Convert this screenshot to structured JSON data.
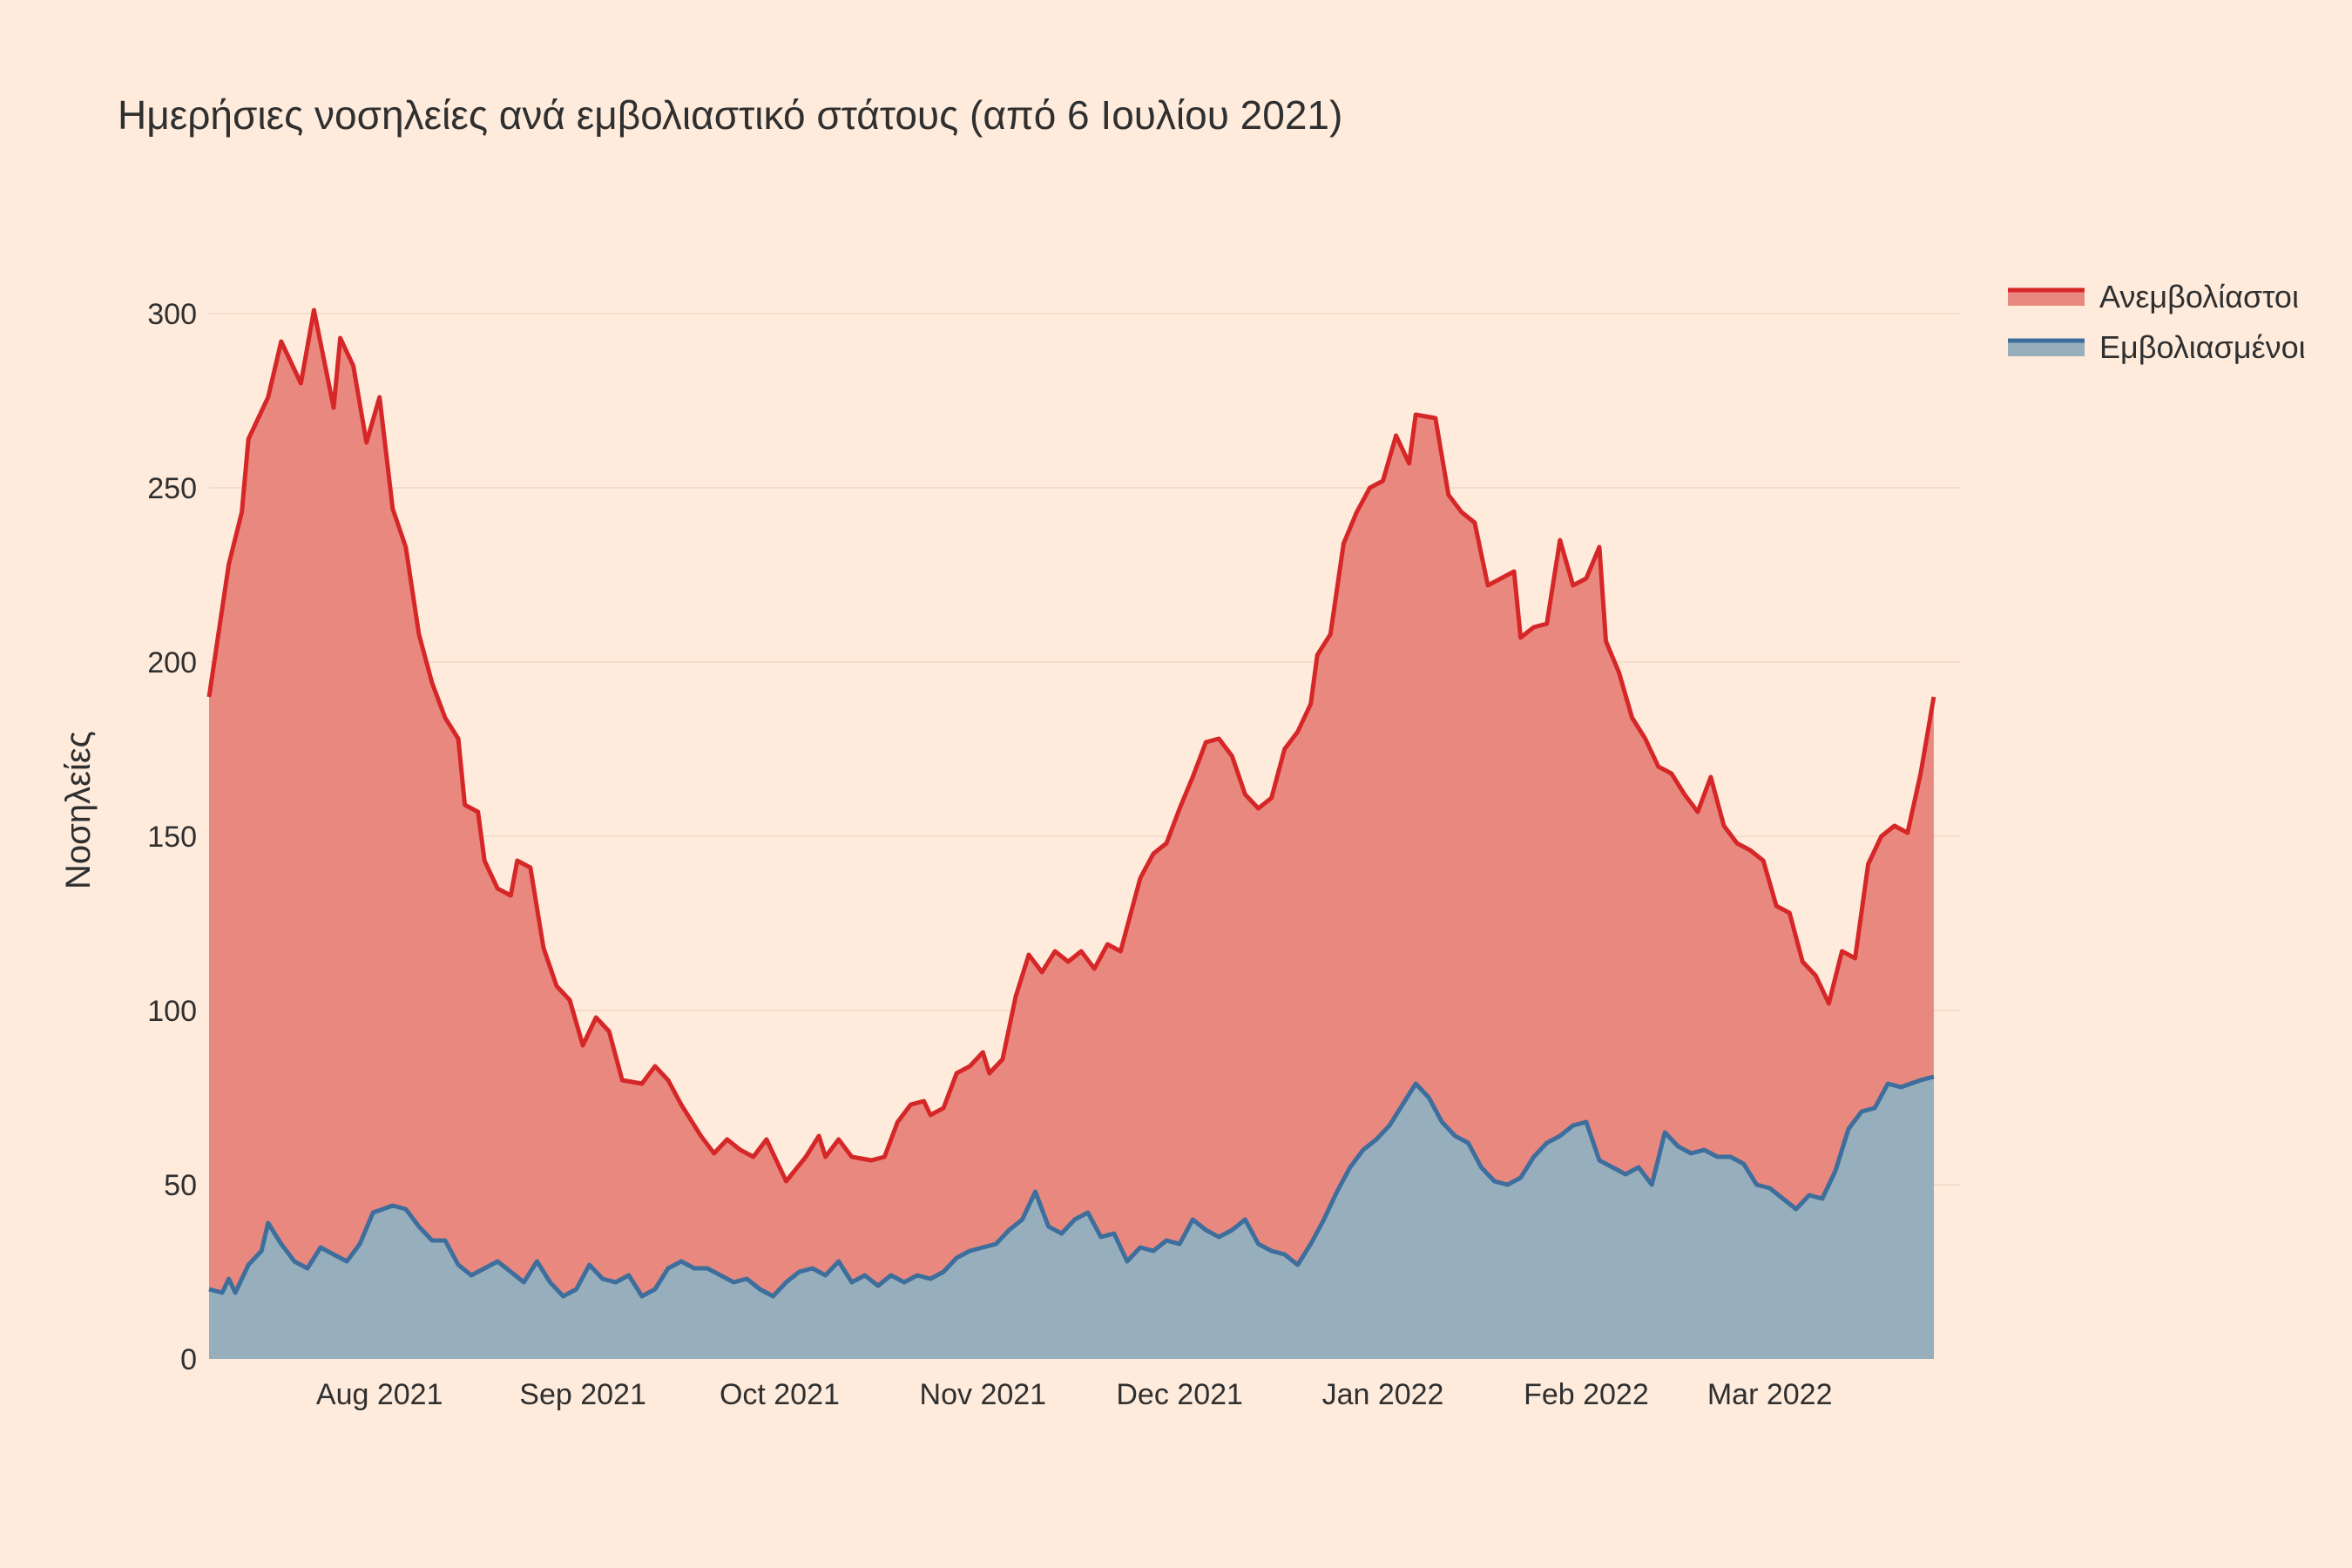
{
  "chart_data": {
    "type": "area",
    "stacked": true,
    "title": "Ημερήσιες νοσηλείες ανά εμβολιαστικό στάτους (από 6 Ιουλίου 2021)",
    "ylabel": "Νοσηλείες",
    "xlabel": "",
    "x_start": "2021-07-06",
    "x_end": "2022-03-30",
    "x_ticks": [
      {
        "date": "2021-08-01",
        "label": "Aug 2021"
      },
      {
        "date": "2021-09-01",
        "label": "Sep 2021"
      },
      {
        "date": "2021-10-01",
        "label": "Oct 2021"
      },
      {
        "date": "2021-11-01",
        "label": "Nov 2021"
      },
      {
        "date": "2021-12-01",
        "label": "Dec 2021"
      },
      {
        "date": "2022-01-01",
        "label": "Jan 2022"
      },
      {
        "date": "2022-02-01",
        "label": "Feb 2022"
      },
      {
        "date": "2022-03-01",
        "label": "Mar 2022"
      }
    ],
    "y_ticks": [
      0,
      50,
      100,
      150,
      200,
      250,
      300
    ],
    "ylim": [
      0,
      300
    ],
    "grid": true,
    "legend_position": "top-right",
    "series": [
      {
        "name": "Ανεμβολίαστοι",
        "line_color": "#d62728",
        "fill_color": "#e9887e",
        "stack_role": "total",
        "points": [
          [
            "2021-07-06",
            190
          ],
          [
            "2021-07-09",
            228
          ],
          [
            "2021-07-11",
            243
          ],
          [
            "2021-07-12",
            264
          ],
          [
            "2021-07-15",
            276
          ],
          [
            "2021-07-17",
            292
          ],
          [
            "2021-07-20",
            280
          ],
          [
            "2021-07-22",
            301
          ],
          [
            "2021-07-25",
            273
          ],
          [
            "2021-07-26",
            293
          ],
          [
            "2021-07-28",
            285
          ],
          [
            "2021-07-30",
            263
          ],
          [
            "2021-08-01",
            276
          ],
          [
            "2021-08-03",
            244
          ],
          [
            "2021-08-05",
            233
          ],
          [
            "2021-08-07",
            208
          ],
          [
            "2021-08-09",
            194
          ],
          [
            "2021-08-11",
            184
          ],
          [
            "2021-08-13",
            178
          ],
          [
            "2021-08-14",
            159
          ],
          [
            "2021-08-16",
            157
          ],
          [
            "2021-08-17",
            143
          ],
          [
            "2021-08-19",
            135
          ],
          [
            "2021-08-21",
            133
          ],
          [
            "2021-08-22",
            143
          ],
          [
            "2021-08-24",
            141
          ],
          [
            "2021-08-26",
            118
          ],
          [
            "2021-08-28",
            107
          ],
          [
            "2021-08-30",
            103
          ],
          [
            "2021-09-01",
            90
          ],
          [
            "2021-09-03",
            98
          ],
          [
            "2021-09-05",
            94
          ],
          [
            "2021-09-07",
            80
          ],
          [
            "2021-09-10",
            79
          ],
          [
            "2021-09-12",
            84
          ],
          [
            "2021-09-14",
            80
          ],
          [
            "2021-09-16",
            73
          ],
          [
            "2021-09-19",
            64
          ],
          [
            "2021-09-21",
            59
          ],
          [
            "2021-09-23",
            63
          ],
          [
            "2021-09-25",
            60
          ],
          [
            "2021-09-27",
            58
          ],
          [
            "2021-09-29",
            63
          ],
          [
            "2021-10-02",
            51
          ],
          [
            "2021-10-05",
            58
          ],
          [
            "2021-10-07",
            64
          ],
          [
            "2021-10-08",
            58
          ],
          [
            "2021-10-10",
            63
          ],
          [
            "2021-10-12",
            58
          ],
          [
            "2021-10-15",
            57
          ],
          [
            "2021-10-17",
            58
          ],
          [
            "2021-10-19",
            68
          ],
          [
            "2021-10-21",
            73
          ],
          [
            "2021-10-23",
            74
          ],
          [
            "2021-10-24",
            70
          ],
          [
            "2021-10-26",
            72
          ],
          [
            "2021-10-28",
            82
          ],
          [
            "2021-10-30",
            84
          ],
          [
            "2021-11-01",
            88
          ],
          [
            "2021-11-02",
            82
          ],
          [
            "2021-11-04",
            86
          ],
          [
            "2021-11-06",
            104
          ],
          [
            "2021-11-08",
            116
          ],
          [
            "2021-11-10",
            111
          ],
          [
            "2021-11-12",
            117
          ],
          [
            "2021-11-14",
            114
          ],
          [
            "2021-11-16",
            117
          ],
          [
            "2021-11-18",
            112
          ],
          [
            "2021-11-20",
            119
          ],
          [
            "2021-11-22",
            117
          ],
          [
            "2021-11-25",
            138
          ],
          [
            "2021-11-27",
            145
          ],
          [
            "2021-11-29",
            148
          ],
          [
            "2021-12-01",
            158
          ],
          [
            "2021-12-03",
            167
          ],
          [
            "2021-12-05",
            177
          ],
          [
            "2021-12-07",
            178
          ],
          [
            "2021-12-09",
            173
          ],
          [
            "2021-12-11",
            162
          ],
          [
            "2021-12-13",
            158
          ],
          [
            "2021-12-15",
            161
          ],
          [
            "2021-12-17",
            175
          ],
          [
            "2021-12-19",
            180
          ],
          [
            "2021-12-21",
            188
          ],
          [
            "2021-12-22",
            202
          ],
          [
            "2021-12-24",
            208
          ],
          [
            "2021-12-26",
            234
          ],
          [
            "2021-12-28",
            243
          ],
          [
            "2021-12-30",
            250
          ],
          [
            "2022-01-01",
            252
          ],
          [
            "2022-01-03",
            265
          ],
          [
            "2022-01-05",
            257
          ],
          [
            "2022-01-06",
            271
          ],
          [
            "2022-01-09",
            270
          ],
          [
            "2022-01-11",
            248
          ],
          [
            "2022-01-13",
            243
          ],
          [
            "2022-01-15",
            240
          ],
          [
            "2022-01-17",
            222
          ],
          [
            "2022-01-19",
            224
          ],
          [
            "2022-01-21",
            226
          ],
          [
            "2022-01-22",
            207
          ],
          [
            "2022-01-24",
            210
          ],
          [
            "2022-01-26",
            211
          ],
          [
            "2022-01-28",
            235
          ],
          [
            "2022-01-30",
            222
          ],
          [
            "2022-02-01",
            224
          ],
          [
            "2022-02-03",
            233
          ],
          [
            "2022-02-04",
            206
          ],
          [
            "2022-02-06",
            197
          ],
          [
            "2022-02-08",
            184
          ],
          [
            "2022-02-10",
            178
          ],
          [
            "2022-02-12",
            170
          ],
          [
            "2022-02-14",
            168
          ],
          [
            "2022-02-16",
            162
          ],
          [
            "2022-02-18",
            157
          ],
          [
            "2022-02-20",
            167
          ],
          [
            "2022-02-22",
            153
          ],
          [
            "2022-02-24",
            148
          ],
          [
            "2022-02-26",
            146
          ],
          [
            "2022-02-28",
            143
          ],
          [
            "2022-03-02",
            130
          ],
          [
            "2022-03-04",
            128
          ],
          [
            "2022-03-06",
            114
          ],
          [
            "2022-03-08",
            110
          ],
          [
            "2022-03-10",
            102
          ],
          [
            "2022-03-12",
            117
          ],
          [
            "2022-03-14",
            115
          ],
          [
            "2022-03-16",
            142
          ],
          [
            "2022-03-18",
            150
          ],
          [
            "2022-03-20",
            153
          ],
          [
            "2022-03-22",
            151
          ],
          [
            "2022-03-24",
            168
          ],
          [
            "2022-03-26",
            190
          ]
        ]
      },
      {
        "name": "Εμβολιασμένοι",
        "line_color": "#3d6e9c",
        "fill_color": "#97aebd",
        "stack_role": "component",
        "points": [
          [
            "2021-07-06",
            20
          ],
          [
            "2021-07-08",
            19
          ],
          [
            "2021-07-09",
            23
          ],
          [
            "2021-07-10",
            19
          ],
          [
            "2021-07-12",
            27
          ],
          [
            "2021-07-14",
            31
          ],
          [
            "2021-07-15",
            39
          ],
          [
            "2021-07-17",
            33
          ],
          [
            "2021-07-19",
            28
          ],
          [
            "2021-07-21",
            26
          ],
          [
            "2021-07-23",
            32
          ],
          [
            "2021-07-25",
            30
          ],
          [
            "2021-07-27",
            28
          ],
          [
            "2021-07-29",
            33
          ],
          [
            "2021-07-31",
            42
          ],
          [
            "2021-08-03",
            44
          ],
          [
            "2021-08-05",
            43
          ],
          [
            "2021-08-07",
            38
          ],
          [
            "2021-08-09",
            34
          ],
          [
            "2021-08-11",
            34
          ],
          [
            "2021-08-13",
            27
          ],
          [
            "2021-08-15",
            24
          ],
          [
            "2021-08-17",
            26
          ],
          [
            "2021-08-19",
            28
          ],
          [
            "2021-08-21",
            25
          ],
          [
            "2021-08-23",
            22
          ],
          [
            "2021-08-25",
            28
          ],
          [
            "2021-08-27",
            22
          ],
          [
            "2021-08-29",
            18
          ],
          [
            "2021-08-31",
            20
          ],
          [
            "2021-09-02",
            27
          ],
          [
            "2021-09-04",
            23
          ],
          [
            "2021-09-06",
            22
          ],
          [
            "2021-09-08",
            24
          ],
          [
            "2021-09-10",
            18
          ],
          [
            "2021-09-12",
            20
          ],
          [
            "2021-09-14",
            26
          ],
          [
            "2021-09-16",
            28
          ],
          [
            "2021-09-18",
            26
          ],
          [
            "2021-09-20",
            26
          ],
          [
            "2021-09-22",
            24
          ],
          [
            "2021-09-24",
            22
          ],
          [
            "2021-09-26",
            23
          ],
          [
            "2021-09-28",
            20
          ],
          [
            "2021-09-30",
            18
          ],
          [
            "2021-10-02",
            22
          ],
          [
            "2021-10-04",
            25
          ],
          [
            "2021-10-06",
            26
          ],
          [
            "2021-10-08",
            24
          ],
          [
            "2021-10-10",
            28
          ],
          [
            "2021-10-12",
            22
          ],
          [
            "2021-10-14",
            24
          ],
          [
            "2021-10-16",
            21
          ],
          [
            "2021-10-18",
            24
          ],
          [
            "2021-10-20",
            22
          ],
          [
            "2021-10-22",
            24
          ],
          [
            "2021-10-24",
            23
          ],
          [
            "2021-10-26",
            25
          ],
          [
            "2021-10-28",
            29
          ],
          [
            "2021-10-30",
            31
          ],
          [
            "2021-11-01",
            32
          ],
          [
            "2021-11-03",
            33
          ],
          [
            "2021-11-05",
            37
          ],
          [
            "2021-11-07",
            40
          ],
          [
            "2021-11-09",
            48
          ],
          [
            "2021-11-11",
            38
          ],
          [
            "2021-11-13",
            36
          ],
          [
            "2021-11-15",
            40
          ],
          [
            "2021-11-17",
            42
          ],
          [
            "2021-11-19",
            35
          ],
          [
            "2021-11-21",
            36
          ],
          [
            "2021-11-23",
            28
          ],
          [
            "2021-11-25",
            32
          ],
          [
            "2021-11-27",
            31
          ],
          [
            "2021-11-29",
            34
          ],
          [
            "2021-12-01",
            33
          ],
          [
            "2021-12-03",
            40
          ],
          [
            "2021-12-05",
            37
          ],
          [
            "2021-12-07",
            35
          ],
          [
            "2021-12-09",
            37
          ],
          [
            "2021-12-11",
            40
          ],
          [
            "2021-12-13",
            33
          ],
          [
            "2021-12-15",
            31
          ],
          [
            "2021-12-17",
            30
          ],
          [
            "2021-12-19",
            27
          ],
          [
            "2021-12-21",
            33
          ],
          [
            "2021-12-23",
            40
          ],
          [
            "2021-12-25",
            48
          ],
          [
            "2021-12-27",
            55
          ],
          [
            "2021-12-29",
            60
          ],
          [
            "2021-12-31",
            63
          ],
          [
            "2022-01-02",
            67
          ],
          [
            "2022-01-04",
            73
          ],
          [
            "2022-01-06",
            79
          ],
          [
            "2022-01-08",
            75
          ],
          [
            "2022-01-10",
            68
          ],
          [
            "2022-01-12",
            64
          ],
          [
            "2022-01-14",
            62
          ],
          [
            "2022-01-16",
            55
          ],
          [
            "2022-01-18",
            51
          ],
          [
            "2022-01-20",
            50
          ],
          [
            "2022-01-22",
            52
          ],
          [
            "2022-01-24",
            58
          ],
          [
            "2022-01-26",
            62
          ],
          [
            "2022-01-28",
            64
          ],
          [
            "2022-01-30",
            67
          ],
          [
            "2022-02-01",
            68
          ],
          [
            "2022-02-03",
            57
          ],
          [
            "2022-02-05",
            55
          ],
          [
            "2022-02-07",
            53
          ],
          [
            "2022-02-09",
            55
          ],
          [
            "2022-02-11",
            50
          ],
          [
            "2022-02-13",
            65
          ],
          [
            "2022-02-15",
            61
          ],
          [
            "2022-02-17",
            59
          ],
          [
            "2022-02-19",
            60
          ],
          [
            "2022-02-21",
            58
          ],
          [
            "2022-02-23",
            58
          ],
          [
            "2022-02-25",
            56
          ],
          [
            "2022-02-27",
            50
          ],
          [
            "2022-03-01",
            49
          ],
          [
            "2022-03-03",
            46
          ],
          [
            "2022-03-05",
            43
          ],
          [
            "2022-03-07",
            47
          ],
          [
            "2022-03-09",
            46
          ],
          [
            "2022-03-11",
            54
          ],
          [
            "2022-03-13",
            66
          ],
          [
            "2022-03-15",
            71
          ],
          [
            "2022-03-17",
            72
          ],
          [
            "2022-03-19",
            79
          ],
          [
            "2022-03-21",
            78
          ],
          [
            "2022-03-24",
            80
          ],
          [
            "2022-03-26",
            81
          ]
        ]
      }
    ]
  }
}
